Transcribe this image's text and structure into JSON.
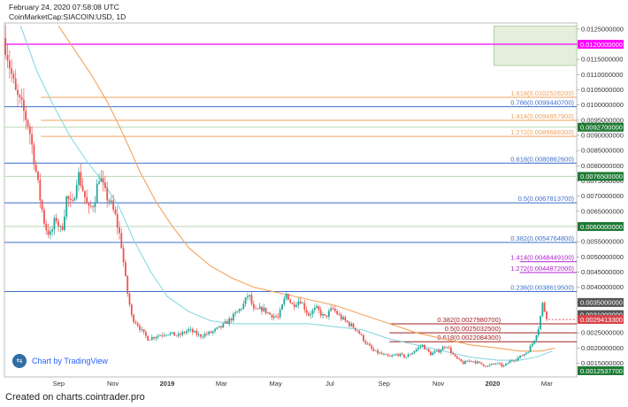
{
  "header": {
    "timestamp": "February 24, 2020 07:58:08 UTC",
    "symbol_line": "CoinMarketCap:SIACOIN:USD, 1D"
  },
  "footer": {
    "text": "Created on charts.cointrader.pro"
  },
  "badge": {
    "label": "Chart by TradingView",
    "icon": "tradingview-logo-icon"
  },
  "colors": {
    "bull": "#26a69a",
    "bear": "#ef5350",
    "ma_fast": "#7fd4e0",
    "ma_slow": "#f4a35c",
    "fib_blue": "#3d6fc9",
    "fib_orange": "#f0a35c",
    "fib_purple": "#b020d0",
    "magenta": "#ff00ff",
    "green_axis": "#1e7a35",
    "red_axis": "#d9424a",
    "dark_red": "#a02020"
  },
  "chart_data": {
    "type": "candlestick",
    "title": "CoinMarketCap:SIACOIN:USD, 1D",
    "ylim": [
      0.00125,
      0.0126
    ],
    "y_ticks": [
      "0.0125000000",
      "0.0120000000",
      "0.0115000000",
      "0.0110000000",
      "0.0105000000",
      "0.0100000000",
      "0.0095000000",
      "0.0090000000",
      "0.0085000000",
      "0.0080000000",
      "0.0075000000",
      "0.0070000000",
      "0.0065000000",
      "0.0060000000",
      "0.0055000000",
      "0.0050000000",
      "0.0045000000",
      "0.0040000000",
      "0.0035000000",
      "0.0030000000",
      "0.0025000000",
      "0.0020000000",
      "0.0015000000"
    ],
    "x_labels": [
      "Sep",
      "Nov",
      "2019",
      "Mar",
      "May",
      "Jul",
      "Sep",
      "Nov",
      "2020",
      "Mar"
    ],
    "x_label_months": [
      2,
      4,
      6,
      8,
      10,
      12,
      14,
      16,
      18,
      20
    ],
    "x_range_months": [
      0,
      21.1
    ],
    "x_bold": [
      "2019",
      "2020"
    ],
    "price_path": [
      [
        0.0,
        0.0122
      ],
      [
        0.15,
        0.0115
      ],
      [
        0.4,
        0.0104
      ],
      [
        0.7,
        0.0098
      ],
      [
        0.9,
        0.0093
      ],
      [
        1.1,
        0.0082
      ],
      [
        1.3,
        0.007
      ],
      [
        1.5,
        0.006
      ],
      [
        1.7,
        0.0057
      ],
      [
        1.9,
        0.0063
      ],
      [
        2.1,
        0.0058
      ],
      [
        2.3,
        0.007
      ],
      [
        2.5,
        0.0066
      ],
      [
        2.7,
        0.0078
      ],
      [
        2.9,
        0.0072
      ],
      [
        3.1,
        0.0065
      ],
      [
        3.3,
        0.0068
      ],
      [
        3.5,
        0.0077
      ],
      [
        3.7,
        0.0071
      ],
      [
        3.9,
        0.0068
      ],
      [
        4.1,
        0.0063
      ],
      [
        4.3,
        0.0055
      ],
      [
        4.5,
        0.004
      ],
      [
        4.7,
        0.003
      ],
      [
        4.9,
        0.0028
      ],
      [
        5.1,
        0.0025
      ],
      [
        5.3,
        0.0023
      ],
      [
        5.6,
        0.0024
      ],
      [
        6.0,
        0.0025
      ],
      [
        6.4,
        0.0024
      ],
      [
        6.8,
        0.0026
      ],
      [
        7.2,
        0.0024
      ],
      [
        7.6,
        0.0025
      ],
      [
        8.0,
        0.0027
      ],
      [
        8.4,
        0.003
      ],
      [
        8.8,
        0.0034
      ],
      [
        9.0,
        0.0038
      ],
      [
        9.2,
        0.0032
      ],
      [
        9.5,
        0.0033
      ],
      [
        9.8,
        0.0031
      ],
      [
        10.1,
        0.003
      ],
      [
        10.4,
        0.0038
      ],
      [
        10.6,
        0.0034
      ],
      [
        10.9,
        0.0036
      ],
      [
        11.2,
        0.0031
      ],
      [
        11.5,
        0.0033
      ],
      [
        11.8,
        0.003
      ],
      [
        12.1,
        0.0033
      ],
      [
        12.4,
        0.003
      ],
      [
        12.7,
        0.0028
      ],
      [
        13.0,
        0.0026
      ],
      [
        13.3,
        0.0022
      ],
      [
        13.6,
        0.0019
      ],
      [
        13.9,
        0.0018
      ],
      [
        14.2,
        0.0017
      ],
      [
        14.5,
        0.0018
      ],
      [
        14.8,
        0.0017
      ],
      [
        15.1,
        0.0019
      ],
      [
        15.4,
        0.0021
      ],
      [
        15.7,
        0.0018
      ],
      [
        16.0,
        0.0019
      ],
      [
        16.3,
        0.0021
      ],
      [
        16.6,
        0.0017
      ],
      [
        16.9,
        0.0015
      ],
      [
        17.2,
        0.0016
      ],
      [
        17.5,
        0.0015
      ],
      [
        17.8,
        0.0014
      ],
      [
        18.1,
        0.0015
      ],
      [
        18.4,
        0.0014
      ],
      [
        18.7,
        0.0016
      ],
      [
        19.0,
        0.0017
      ],
      [
        19.3,
        0.0019
      ],
      [
        19.5,
        0.0022
      ],
      [
        19.7,
        0.0027
      ],
      [
        19.85,
        0.0035
      ],
      [
        19.95,
        0.0031
      ],
      [
        20.05,
        0.00294
      ]
    ],
    "ma_fast": [
      [
        0.6,
        0.0126
      ],
      [
        1.2,
        0.0111
      ],
      [
        1.8,
        0.01
      ],
      [
        2.4,
        0.009
      ],
      [
        3.0,
        0.0082
      ],
      [
        3.6,
        0.0075
      ],
      [
        4.2,
        0.0067
      ],
      [
        4.8,
        0.0055
      ],
      [
        5.4,
        0.0045
      ],
      [
        6.0,
        0.0037
      ],
      [
        6.8,
        0.0032
      ],
      [
        7.6,
        0.0029
      ],
      [
        8.4,
        0.0028
      ],
      [
        9.2,
        0.0028
      ],
      [
        10.2,
        0.0028
      ],
      [
        11.2,
        0.0028
      ],
      [
        12.2,
        0.0027
      ],
      [
        13.2,
        0.0026
      ],
      [
        14.2,
        0.0023
      ],
      [
        15.2,
        0.0021
      ],
      [
        16.2,
        0.0019
      ],
      [
        17.2,
        0.0017
      ],
      [
        18.2,
        0.0016
      ],
      [
        19.0,
        0.0016
      ],
      [
        19.6,
        0.0017
      ],
      [
        20.2,
        0.0019
      ]
    ],
    "ma_slow": [
      [
        2.0,
        0.0126
      ],
      [
        2.6,
        0.0118
      ],
      [
        3.2,
        0.011
      ],
      [
        3.8,
        0.0101
      ],
      [
        4.4,
        0.009
      ],
      [
        5.0,
        0.0078
      ],
      [
        5.6,
        0.0068
      ],
      [
        6.2,
        0.006
      ],
      [
        6.8,
        0.0053
      ],
      [
        7.6,
        0.0047
      ],
      [
        8.4,
        0.0043
      ],
      [
        9.2,
        0.004
      ],
      [
        10.2,
        0.0038
      ],
      [
        11.2,
        0.0036
      ],
      [
        12.2,
        0.0034
      ],
      [
        13.2,
        0.0031
      ],
      [
        14.2,
        0.0028
      ],
      [
        15.2,
        0.0025
      ],
      [
        16.2,
        0.0023
      ],
      [
        17.2,
        0.0021
      ],
      [
        18.2,
        0.002
      ],
      [
        19.0,
        0.0019
      ],
      [
        19.8,
        0.0019
      ],
      [
        20.3,
        0.002
      ]
    ],
    "fib_upper": [
      {
        "label": "1.618(0.0102528200)",
        "price": 0.01025282,
        "color": "#f0a35c"
      },
      {
        "label": "0.786(0.0099440700)",
        "price": 0.00994407,
        "color": "#3d6fc9"
      },
      {
        "label": "1.414(0.0094957900)",
        "price": 0.00949579,
        "color": "#f0a35c"
      },
      {
        "label": "1.272(0.0089688300)",
        "price": 0.00896883,
        "color": "#f0a35c"
      },
      {
        "label": "0.618(0.0080862600)",
        "price": 0.00808626,
        "color": "#3d6fc9"
      },
      {
        "label": "0.5(0.0067813700)",
        "price": 0.00678137,
        "color": "#3d6fc9"
      },
      {
        "label": "0.382(0.0054764800)",
        "price": 0.00547648,
        "color": "#3d6fc9"
      },
      {
        "label": "1.414(0.0048449100)",
        "price": 0.00484491,
        "color": "#b020d0"
      },
      {
        "label": "1.272(0.0044872000)",
        "price": 0.0044872,
        "color": "#b020d0"
      },
      {
        "label": "0.236(0.0038619500)",
        "price": 0.00386195,
        "color": "#3d6fc9"
      }
    ],
    "fib_lower": [
      {
        "label": "0.382(0.0027980700)",
        "price": 0.00279807,
        "color": "#a02020"
      },
      {
        "label": "0.5(0.0025032500)",
        "price": 0.00250325,
        "color": "#a02020"
      },
      {
        "label": "0.618(0.0022084300)",
        "price": 0.00220843,
        "color": "#a02020"
      }
    ],
    "axis_labels": [
      {
        "label": "0.0120000000",
        "price": 0.012,
        "bg": "#ff00ff",
        "line": "magenta"
      },
      {
        "label": "0.0092700000",
        "price": 0.00927,
        "bg": "#1e7a35"
      },
      {
        "label": "0.0076500000",
        "price": 0.00765,
        "bg": "#1e7a35"
      },
      {
        "label": "0.0060000000",
        "price": 0.006,
        "bg": "#1e7a35"
      },
      {
        "label": "0.0035000000",
        "price": 0.0035,
        "bg": "#555555"
      },
      {
        "label": "0.0031000000",
        "price": 0.0031,
        "bg": "#555555"
      },
      {
        "label": "0.0029413300",
        "price": 0.00294133,
        "bg": "#d9424a"
      },
      {
        "label": "0.0012537700",
        "price": 0.00125377,
        "bg": "#1e7a35"
      }
    ],
    "grid_lines_green": [
      0.00927,
      0.00765,
      0.006
    ],
    "shaded_zone": {
      "x_from": 18.05,
      "x_to": 21.1,
      "y_from": 0.0113,
      "y_to": 0.0126
    }
  }
}
